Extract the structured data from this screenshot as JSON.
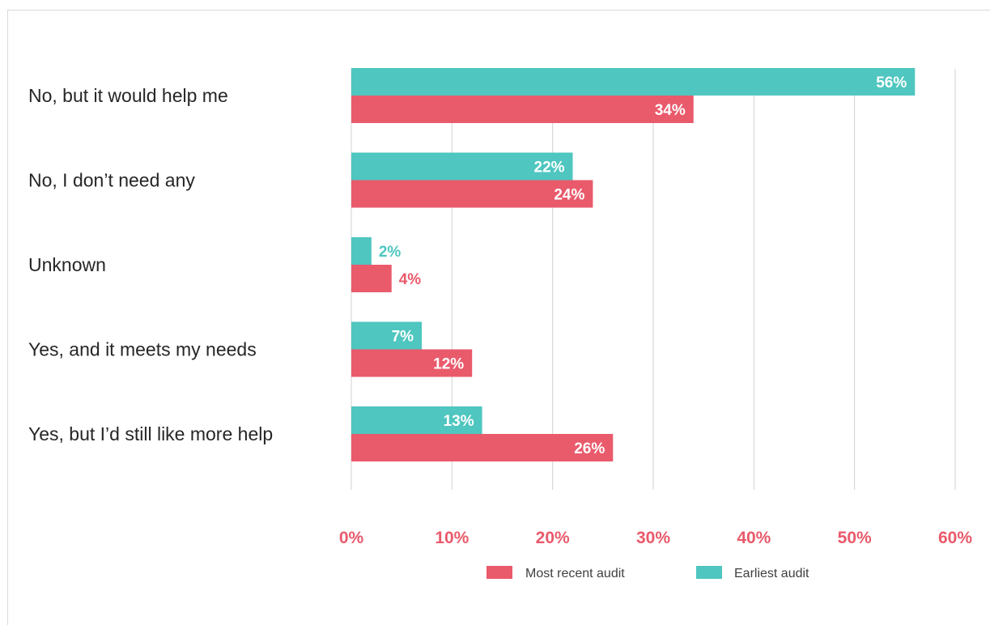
{
  "colors": {
    "most_recent": "#e95a6b",
    "earliest": "#4fc6c0",
    "tick": "#e95a6b",
    "grid": "#d0d0d0"
  },
  "chart_data": {
    "type": "bar",
    "orientation": "horizontal",
    "title": "",
    "xlabel": "",
    "ylabel": "",
    "categories": [
      "No, but it would help me",
      "No, I don’t need any",
      "Unknown",
      "Yes, and it meets my needs",
      "Yes, but I’d still like more help"
    ],
    "series": [
      {
        "name": "Earliest audit",
        "values": [
          56,
          22,
          2,
          7,
          13
        ]
      },
      {
        "name": "Most recent audit",
        "values": [
          34,
          24,
          4,
          12,
          26
        ]
      }
    ],
    "value_labels": {
      "Earliest audit": [
        "56%",
        "22%",
        "2%",
        "7%",
        "13%"
      ],
      "Most recent audit": [
        "34%",
        "24%",
        "4%",
        "12%",
        "26%"
      ]
    },
    "xlim": [
      0,
      60
    ],
    "xticks": [
      0,
      10,
      20,
      30,
      40,
      50,
      60
    ],
    "xtick_labels": [
      "0%",
      "10%",
      "20%",
      "30%",
      "40%",
      "50%",
      "60%"
    ],
    "grid": "vertical",
    "legend": {
      "placement": "bottom",
      "entries": [
        "Most recent audit",
        "Earliest audit"
      ]
    }
  }
}
